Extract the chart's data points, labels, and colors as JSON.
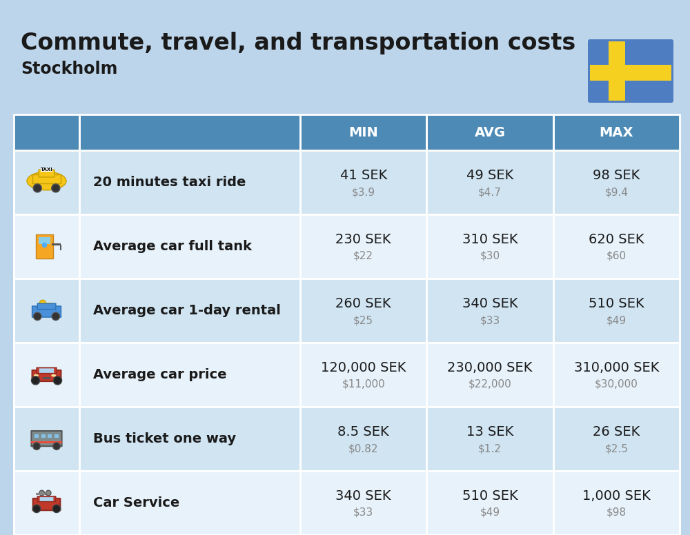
{
  "title": "Commute, travel, and transportation costs",
  "subtitle": "Stockholm",
  "background_color": "#bdd5ea",
  "header_bg_color": "#4d8ab5",
  "header_text_color": "#ffffff",
  "row_bg_odd": "#d0e4f2",
  "row_bg_even": "#e8f2fa",
  "border_color": "#ffffff",
  "col_headers": [
    "MIN",
    "AVG",
    "MAX"
  ],
  "rows": [
    {
      "label": "20 minutes taxi ride",
      "min_sek": "41 SEK",
      "min_usd": "$3.9",
      "avg_sek": "49 SEK",
      "avg_usd": "$4.7",
      "max_sek": "98 SEK",
      "max_usd": "$9.4"
    },
    {
      "label": "Average car full tank",
      "min_sek": "230 SEK",
      "min_usd": "$22",
      "avg_sek": "310 SEK",
      "avg_usd": "$30",
      "max_sek": "620 SEK",
      "max_usd": "$60"
    },
    {
      "label": "Average car 1-day rental",
      "min_sek": "260 SEK",
      "min_usd": "$25",
      "avg_sek": "340 SEK",
      "avg_usd": "$33",
      "max_sek": "510 SEK",
      "max_usd": "$49"
    },
    {
      "label": "Average car price",
      "min_sek": "120,000 SEK",
      "min_usd": "$11,000",
      "avg_sek": "230,000 SEK",
      "avg_usd": "$22,000",
      "max_sek": "310,000 SEK",
      "max_usd": "$30,000"
    },
    {
      "label": "Bus ticket one way",
      "min_sek": "8.5 SEK",
      "min_usd": "$0.82",
      "avg_sek": "13 SEK",
      "avg_usd": "$1.2",
      "max_sek": "26 SEK",
      "max_usd": "$2.5"
    },
    {
      "label": "Car Service",
      "min_sek": "340 SEK",
      "min_usd": "$33",
      "avg_sek": "510 SEK",
      "avg_usd": "$49",
      "max_sek": "1,000 SEK",
      "max_usd": "$98"
    }
  ],
  "title_fontsize": 24,
  "subtitle_fontsize": 17,
  "header_fontsize": 14,
  "label_fontsize": 14,
  "value_fontsize": 14,
  "usd_fontsize": 11,
  "flag_blue": "#4f7dc2",
  "flag_yellow": "#f5d020",
  "text_dark": "#1a1a1a",
  "text_gray": "#888888"
}
